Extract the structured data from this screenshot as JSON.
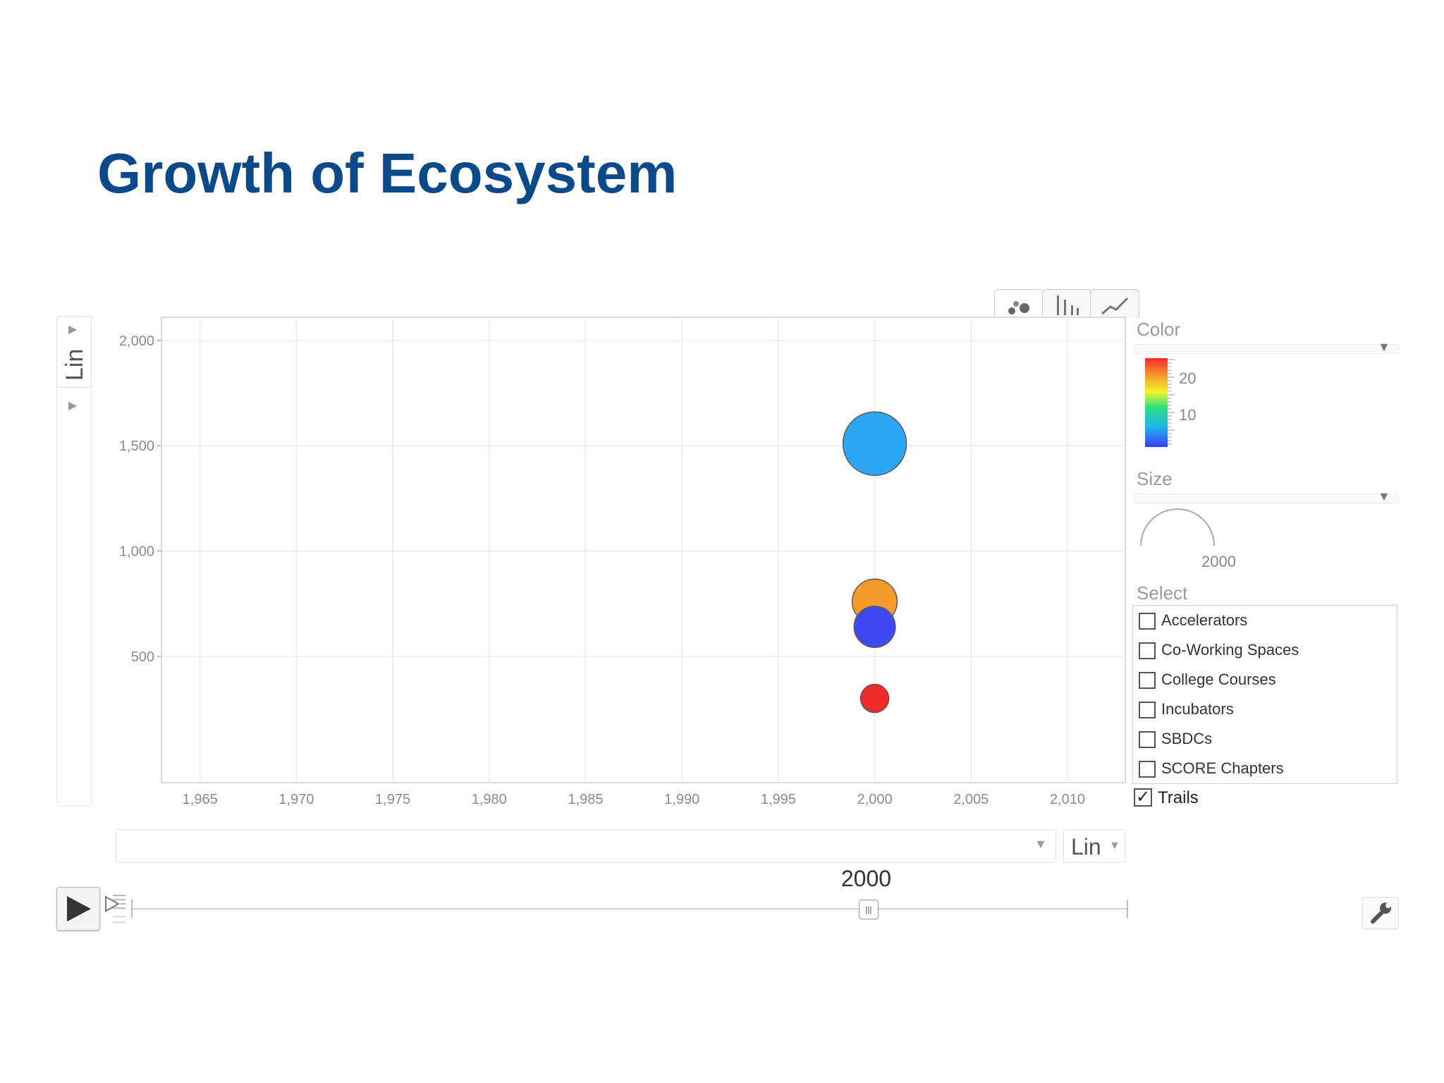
{
  "slide": {
    "title": "Growth of Ecosystem"
  },
  "y_axis_control": {
    "scale_label": "Lin"
  },
  "x_axis_control": {
    "scale_label": "Lin"
  },
  "timeline": {
    "current_year": "2000",
    "range": [
      1963,
      2013
    ],
    "current_value": 2000
  },
  "side_panel": {
    "color_heading": "Color",
    "size_heading": "Size",
    "select_heading": "Select",
    "color_legend_ticks": [
      "20",
      "10"
    ],
    "size_legend_value": "2000",
    "entities": [
      {
        "label": "Accelerators",
        "checked": false
      },
      {
        "label": "Co-Working Spaces",
        "checked": false
      },
      {
        "label": "College Courses",
        "checked": false
      },
      {
        "label": "Incubators",
        "checked": false
      },
      {
        "label": "SBDCs",
        "checked": false
      },
      {
        "label": "SCORE Chapters",
        "checked": false
      }
    ],
    "trails_label": "Trails",
    "trails_checked": true
  },
  "icons": {
    "bubble_tab": "bubble-chart-icon",
    "bar_tab": "bar-chart-icon",
    "line_tab": "line-chart-icon",
    "play": "play-icon",
    "step": "step-forward-icon",
    "settings": "wrench-icon"
  },
  "chart_data": {
    "type": "scatter",
    "title": "",
    "xlabel": "",
    "ylabel": "",
    "xlim": [
      1963,
      2013
    ],
    "ylim": [
      -100,
      2110
    ],
    "x_ticks": [
      1965,
      1970,
      1975,
      1980,
      1985,
      1990,
      1995,
      2000,
      2005,
      2010
    ],
    "x_tick_labels": [
      "1,965",
      "1,970",
      "1,975",
      "1,980",
      "1,985",
      "1,990",
      "1,995",
      "2,000",
      "2,005",
      "2,010"
    ],
    "y_ticks": [
      500,
      1000,
      1500,
      2000
    ],
    "y_tick_labels": [
      "500",
      "1,000",
      "1,500",
      "2,000"
    ],
    "grid": true,
    "legend": "right",
    "points": [
      {
        "x": 2000,
        "y": 1510,
        "size": 1510,
        "color": "#2aa6f5"
      },
      {
        "x": 2000,
        "y": 760,
        "size": 760,
        "color": "#f79a2b"
      },
      {
        "x": 2000,
        "y": 640,
        "size": 640,
        "color": "#3c4af0"
      },
      {
        "x": 2000,
        "y": 300,
        "size": 300,
        "color": "#ee2a2a"
      }
    ],
    "color_scale": [
      "#3a3af5",
      "#1fb3f0",
      "#2ee07a",
      "#f5f52a",
      "#f59a2a",
      "#f52a2a"
    ]
  }
}
